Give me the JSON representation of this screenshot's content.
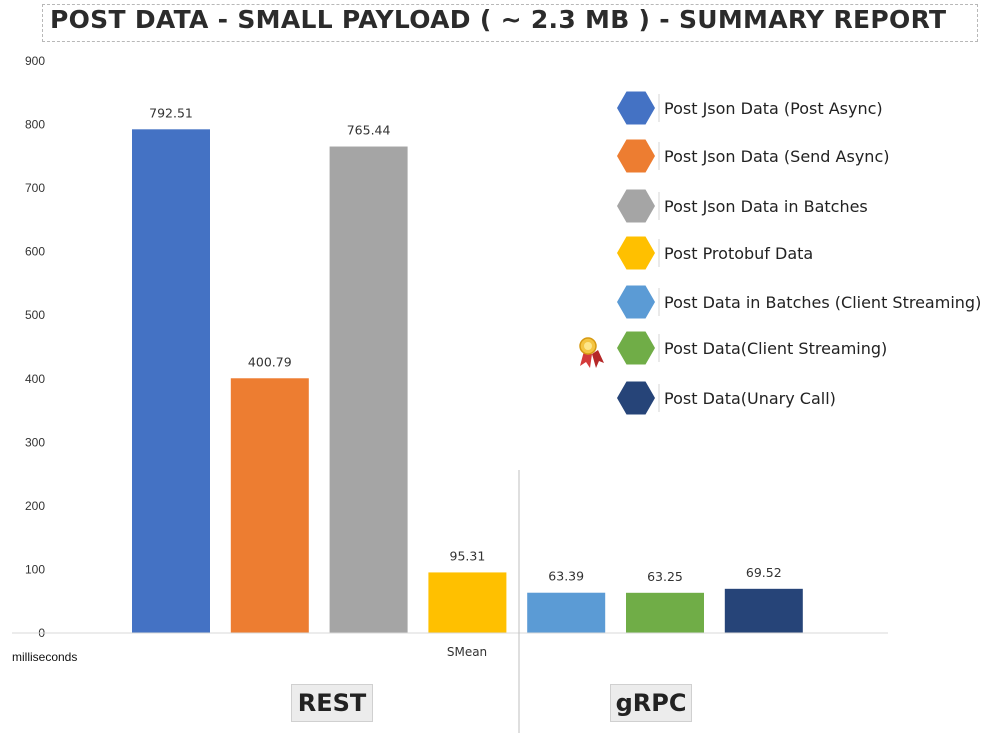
{
  "page": {
    "title": "POST DATA - SMALL PAYLOAD ( ~ 2.3 MB ) - SUMMARY REPORT"
  },
  "chart_data": {
    "type": "bar",
    "title": "POST DATA - SMALL PAYLOAD ( ~ 2.3 MB ) - SUMMARY REPORT",
    "xlabel": "SMean",
    "ylabel": "milliseconds",
    "ylim": [
      0,
      900
    ],
    "yticks": [
      0,
      100,
      200,
      300,
      400,
      500,
      600,
      700,
      800,
      900
    ],
    "grid": false,
    "legend_position": "right",
    "groups": [
      {
        "label": "REST",
        "series_count": 4
      },
      {
        "label": "gRPC",
        "series_count": 3
      }
    ],
    "series": [
      {
        "name": "Post Json Data (Post Async)",
        "value": 792.51,
        "label": "792.51",
        "color": "#4472C4"
      },
      {
        "name": "Post Json Data (Send Async)",
        "value": 400.79,
        "label": "400.79",
        "color": "#ED7D31"
      },
      {
        "name": "Post Json Data in Batches",
        "value": 765.44,
        "label": "765.44",
        "color": "#A5A5A5"
      },
      {
        "name": "Post Protobuf Data",
        "value": 95.31,
        "label": "95.31",
        "color": "#FFC000"
      },
      {
        "name": "Post Data in Batches (Client Streaming)",
        "value": 63.39,
        "label": "63.39",
        "color": "#5B9BD5"
      },
      {
        "name": "Post Data(Client Streaming)",
        "value": 63.25,
        "label": "63.25",
        "color": "#70AD47",
        "award": true
      },
      {
        "name": "Post Data(Unary Call)",
        "value": 69.52,
        "label": "69.52",
        "color": "#264478"
      }
    ]
  }
}
